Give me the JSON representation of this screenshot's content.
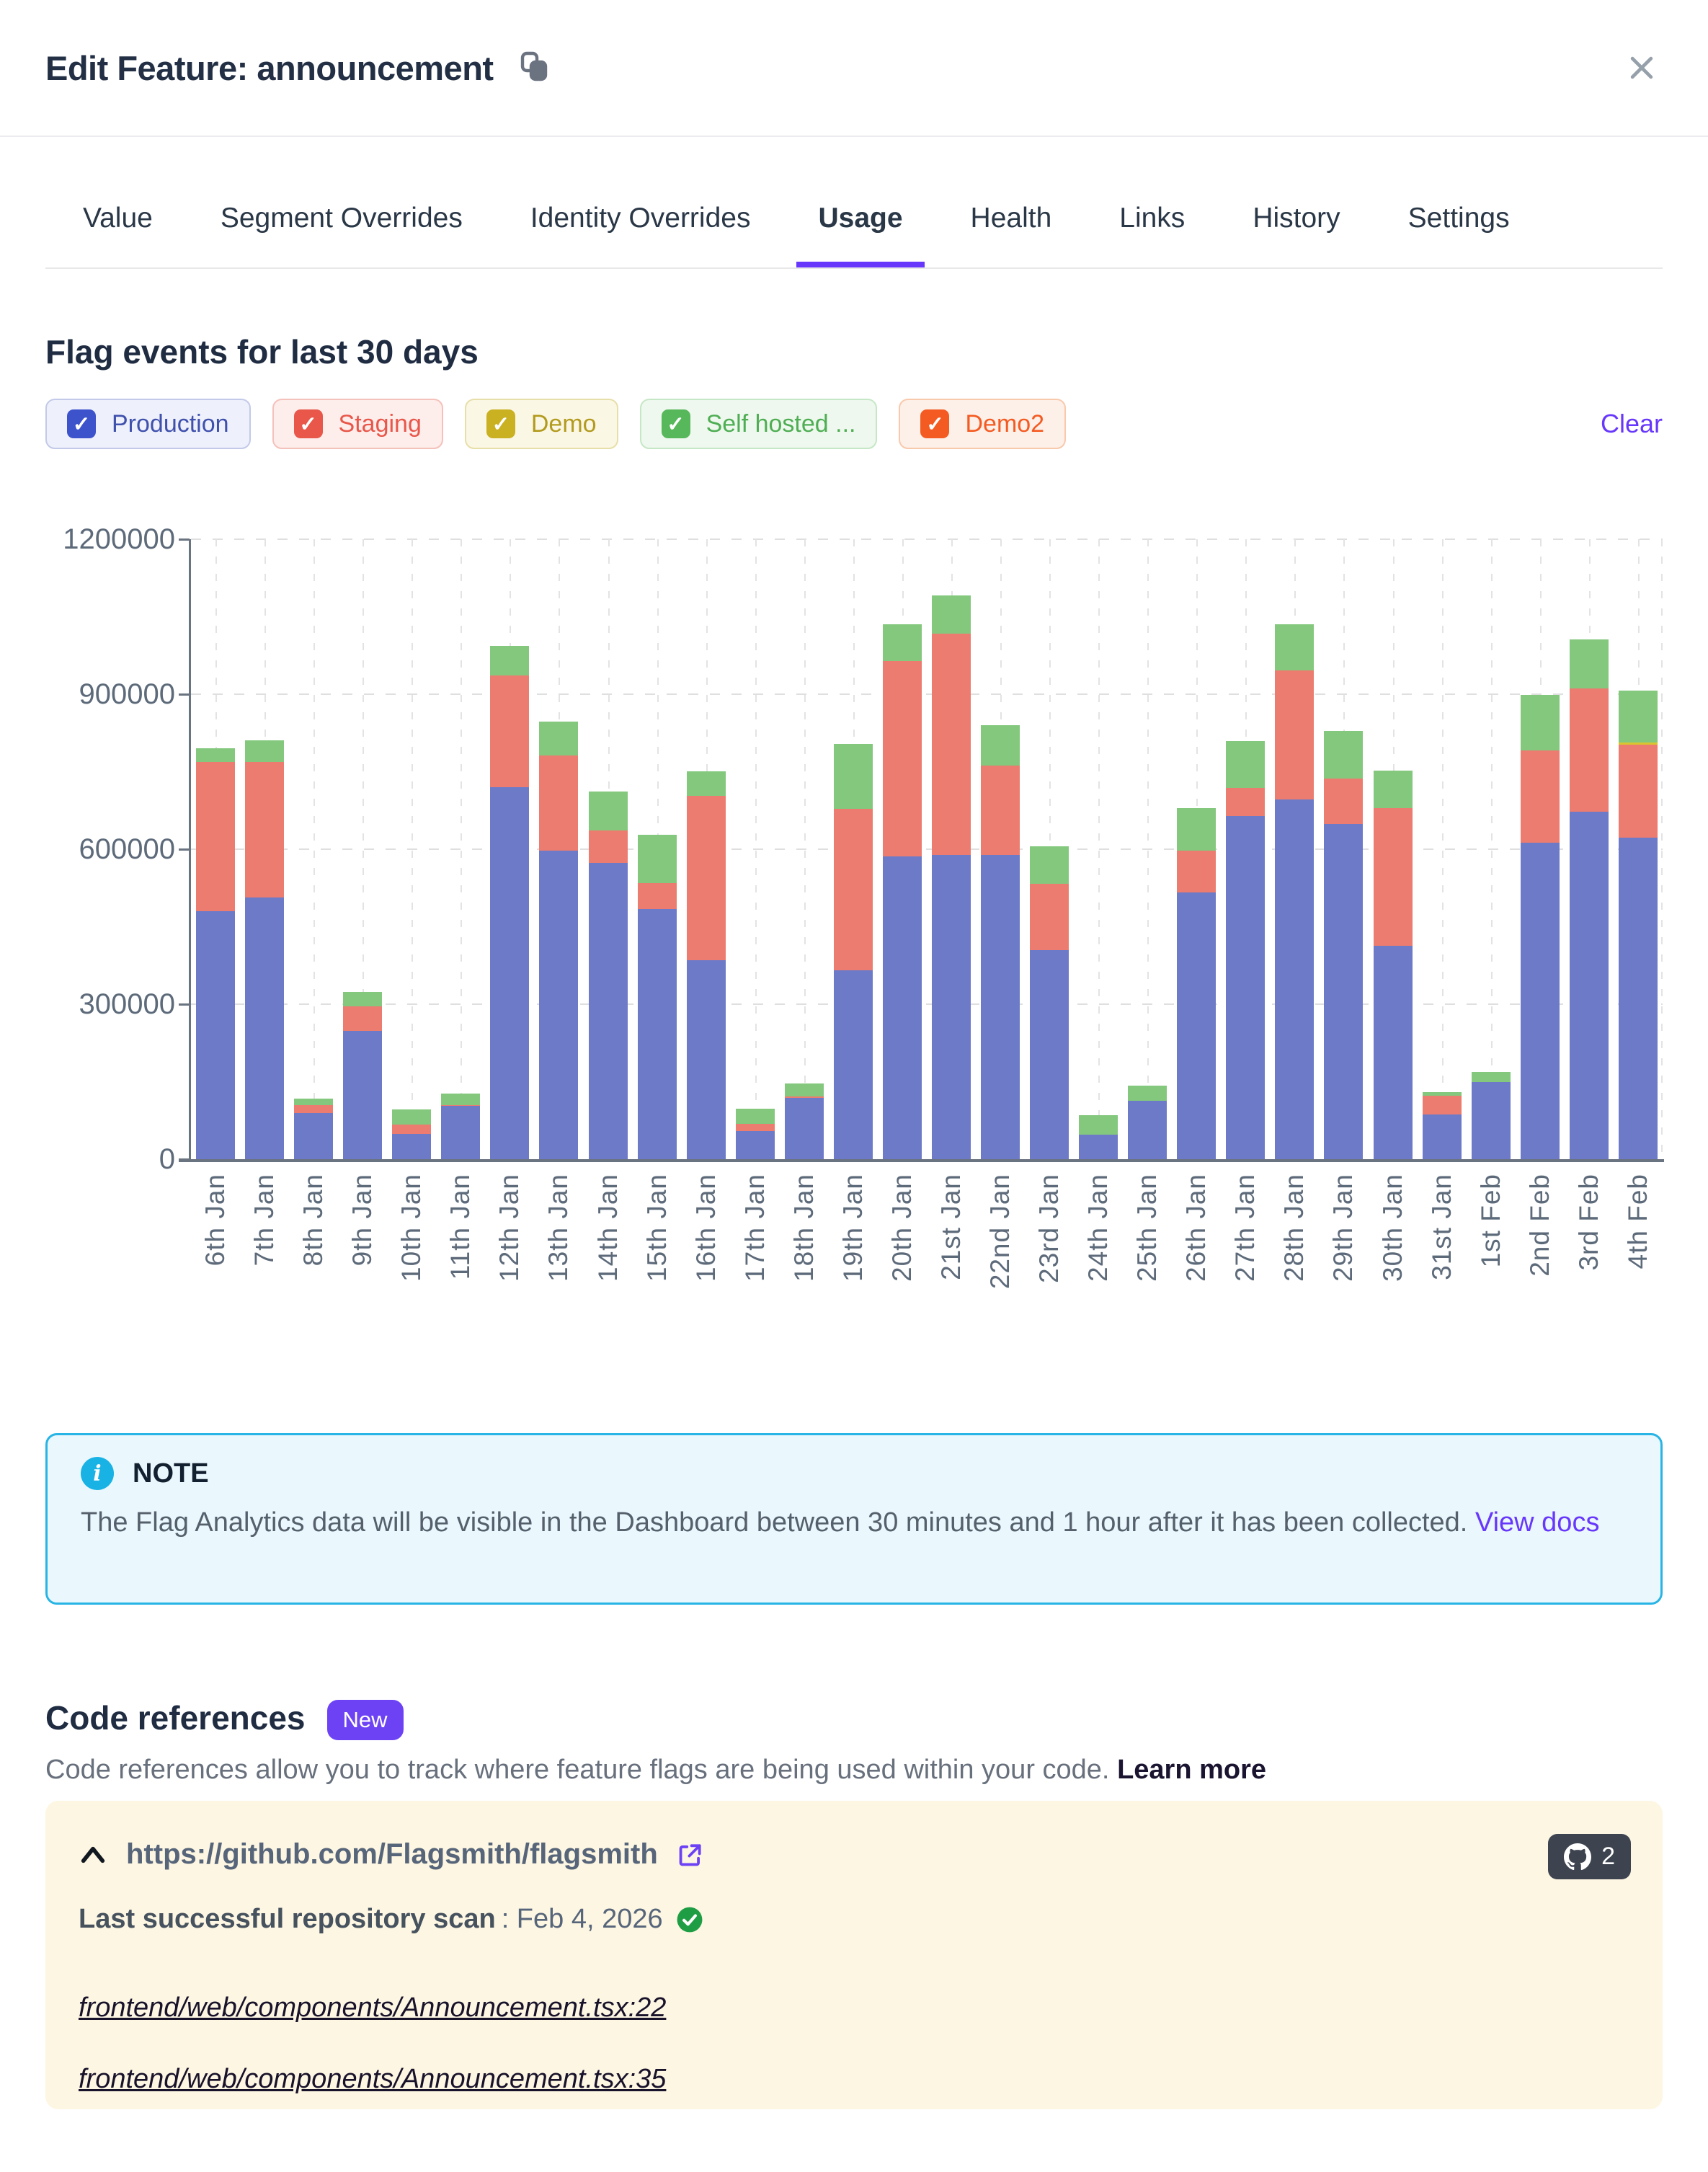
{
  "icons": {
    "check": "✓",
    "info": "i"
  },
  "modal": {
    "title": "Edit Feature: announcement"
  },
  "tabs": [
    {
      "label": "Value",
      "active": false
    },
    {
      "label": "Segment Overrides",
      "active": false
    },
    {
      "label": "Identity Overrides",
      "active": false
    },
    {
      "label": "Usage",
      "active": true
    },
    {
      "label": "Health",
      "active": false
    },
    {
      "label": "Links",
      "active": false
    },
    {
      "label": "History",
      "active": false
    },
    {
      "label": "Settings",
      "active": false
    }
  ],
  "usage": {
    "heading": "Flag events for last 30 days",
    "clear_label": "Clear",
    "environments": [
      {
        "label": "Production",
        "checked": true,
        "checkbox_color": "#3d53cc",
        "text_color": "#3f51ad",
        "pill_bg": "#eef0fb",
        "pill_border": "#c3cae9"
      },
      {
        "label": "Staging",
        "checked": true,
        "checkbox_color": "#e8574a",
        "text_color": "#e8574a",
        "pill_bg": "#fdedeb",
        "pill_border": "#f5c1bb"
      },
      {
        "label": "Demo",
        "checked": true,
        "checkbox_color": "#c9b121",
        "text_color": "#b29b1e",
        "pill_bg": "#fbf7e5",
        "pill_border": "#e7dfa9"
      },
      {
        "label": "Self hosted ...",
        "checked": true,
        "checkbox_color": "#57b85b",
        "text_color": "#4fae54",
        "pill_bg": "#eef8ee",
        "pill_border": "#c6e7c6"
      },
      {
        "label": "Demo2",
        "checked": true,
        "checkbox_color": "#f45b22",
        "text_color": "#f45b22",
        "pill_bg": "#fdf0e8",
        "pill_border": "#f9c9ac"
      }
    ]
  },
  "chart_data": {
    "type": "bar",
    "stacked": true,
    "title": "Flag events for last 30 days",
    "xlabel": "",
    "ylabel": "",
    "ylim": [
      0,
      1200000
    ],
    "grid": "dashed",
    "y_ticks": [
      {
        "value": 1200000,
        "label": "1200000"
      },
      {
        "value": 900000,
        "label": "900000"
      },
      {
        "value": 600000,
        "label": "600000"
      },
      {
        "value": 300000,
        "label": "300000"
      },
      {
        "value": 0,
        "label": "0"
      }
    ],
    "categories": [
      "6th Jan",
      "7th Jan",
      "8th Jan",
      "9th Jan",
      "10th Jan",
      "11th Jan",
      "12th Jan",
      "13th Jan",
      "14th Jan",
      "15th Jan",
      "16th Jan",
      "17th Jan",
      "18th Jan",
      "19th Jan",
      "20th Jan",
      "21st Jan",
      "22nd Jan",
      "23rd Jan",
      "24th Jan",
      "25th Jan",
      "26th Jan",
      "27th Jan",
      "28th Jan",
      "29th Jan",
      "30th Jan",
      "31st Jan",
      "1st Feb",
      "2nd Feb",
      "3rd Feb",
      "4th Feb"
    ],
    "series": [
      {
        "name": "Production",
        "color": "#6d7ac8",
        "values": [
          480000,
          506000,
          89000,
          248000,
          49000,
          103000,
          720000,
          597000,
          573000,
          484000,
          385000,
          55000,
          119000,
          366000,
          586000,
          589000,
          589000,
          405000,
          48000,
          113000,
          516000,
          664000,
          696000,
          649000,
          413000,
          87000,
          149000,
          612000,
          673000,
          622000
        ]
      },
      {
        "name": "Staging",
        "color": "#ec7c6f",
        "values": [
          289000,
          263000,
          16000,
          48000,
          18000,
          2000,
          216000,
          184000,
          63000,
          50000,
          318000,
          14000,
          3000,
          313000,
          378000,
          428000,
          173000,
          129000,
          0,
          0,
          81000,
          55000,
          250000,
          88000,
          267000,
          36000,
          0,
          178000,
          238000,
          180000
        ]
      },
      {
        "name": "Demo",
        "color": "#d9c62f",
        "values": [
          0,
          0,
          0,
          0,
          0,
          0,
          0,
          0,
          0,
          0,
          0,
          0,
          0,
          0,
          0,
          0,
          0,
          0,
          0,
          0,
          0,
          0,
          0,
          0,
          0,
          0,
          0,
          0,
          0,
          4000
        ]
      },
      {
        "name": "Self hosted ...",
        "color": "#83c87d",
        "values": [
          26000,
          42000,
          12000,
          28000,
          29000,
          23000,
          57000,
          65000,
          76000,
          93000,
          48000,
          29000,
          25000,
          125000,
          71000,
          74000,
          78000,
          73000,
          38000,
          29000,
          82000,
          90000,
          89000,
          92000,
          72000,
          7000,
          20000,
          107000,
          95000,
          100000
        ]
      }
    ]
  },
  "note": {
    "title": "NOTE",
    "body": "The Flag Analytics data will be visible in the Dashboard between 30 minutes and 1 hour after it has been collected.",
    "link_label": "View docs"
  },
  "code_references": {
    "heading": "Code references",
    "badge": "New",
    "description": "Code references allow you to track where feature flags are being used within your code.",
    "learn_more_label": "Learn more",
    "repo": {
      "url": "https://github.com/Flagsmith/flagsmith",
      "count": "2",
      "scan_label": "Last successful repository scan",
      "scan_date": ": Feb 4, 2026",
      "files": [
        "frontend/web/components/Announcement.tsx:22",
        "frontend/web/components/Announcement.tsx:35"
      ]
    }
  }
}
